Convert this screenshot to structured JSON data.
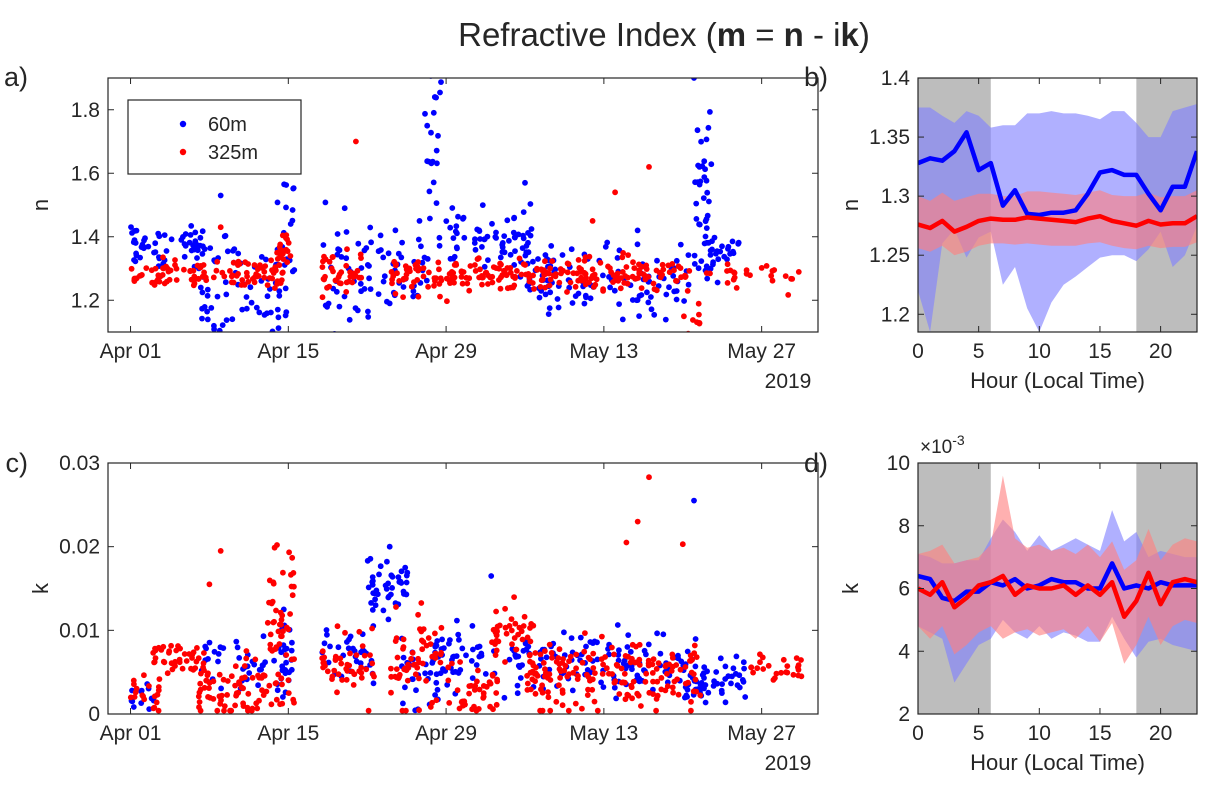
{
  "figure": {
    "title_parts": [
      {
        "text": "Refractive Index (",
        "bold": false
      },
      {
        "text": "m",
        "bold": true
      },
      {
        "text": " = ",
        "bold": false
      },
      {
        "text": "n",
        "bold": true
      },
      {
        "text": " - i",
        "bold": false
      },
      {
        "text": "k",
        "bold": true
      },
      {
        "text": ")",
        "bold": false
      }
    ],
    "year_label": "2019",
    "colors": {
      "blue": "#0000ff",
      "red": "#ff0000",
      "blue_band": "#7f7fff",
      "red_band": "#ff7f7f",
      "night_shade": "#bdbdbd",
      "axis": "#262626"
    }
  },
  "chart_data": [
    {
      "panel": "a)",
      "type": "scatter",
      "ylabel": "n",
      "xlim": [
        "2019-03-30",
        "2019-06-01"
      ],
      "ylim": [
        1.1,
        1.9
      ],
      "xticks": [
        "Apr 01",
        "Apr 15",
        "Apr 29",
        "May 13",
        "May 27"
      ],
      "yticks": [
        "1.2",
        "1.4",
        "1.6",
        "1.8"
      ],
      "legend": {
        "position": "top-left",
        "entries": [
          "60m",
          "325m"
        ]
      },
      "series": [
        {
          "name": "60m",
          "color": "#0000ff",
          "segments": [
            {
              "x0": "2019-04-01",
              "x1": "2019-04-07",
              "mean": 1.37,
              "spread": 0.03,
              "n": 60
            },
            {
              "x0": "2019-04-07",
              "x1": "2019-04-15",
              "mean": 1.22,
              "spread": 0.09,
              "n": 70
            },
            {
              "x0": "2019-04-14",
              "x1": "2019-04-15",
              "mean": 1.47,
              "spread": 0.1,
              "n": 15
            },
            {
              "x0": "2019-04-18",
              "x1": "2019-04-27",
              "mean": 1.28,
              "spread": 0.09,
              "n": 80
            },
            {
              "x0": "2019-04-27",
              "x1": "2019-04-28",
              "mean": 1.7,
              "spread": 0.12,
              "n": 20
            },
            {
              "x0": "2019-04-28",
              "x1": "2019-05-06",
              "mean": 1.39,
              "spread": 0.05,
              "n": 70
            },
            {
              "x0": "2019-05-06",
              "x1": "2019-05-20",
              "mean": 1.26,
              "spread": 0.06,
              "n": 110
            },
            {
              "x0": "2019-05-21",
              "x1": "2019-05-22",
              "mean": 1.55,
              "spread": 0.18,
              "n": 35
            },
            {
              "x0": "2019-05-22",
              "x1": "2019-05-25",
              "mean": 1.36,
              "spread": 0.04,
              "n": 30
            }
          ],
          "points": [
            {
              "x": "2019-05-21",
              "y": 1.9
            },
            {
              "x": "2019-04-28",
              "y": 1.84
            },
            {
              "x": "2019-04-09",
              "y": 1.53
            },
            {
              "x": "2019-05-06",
              "y": 1.57
            },
            {
              "x": "2019-04-20",
              "y": 1.49
            }
          ]
        },
        {
          "name": "325m",
          "color": "#ff0000",
          "segments": [
            {
              "x0": "2019-04-01",
              "x1": "2019-04-14",
              "mean": 1.28,
              "spread": 0.02,
              "n": 110
            },
            {
              "x0": "2019-04-14",
              "x1": "2019-04-15",
              "mean": 1.37,
              "spread": 0.03,
              "n": 20
            },
            {
              "x0": "2019-04-18",
              "x1": "2019-04-21",
              "mean": 1.29,
              "spread": 0.03,
              "n": 40
            },
            {
              "x0": "2019-04-24",
              "x1": "2019-04-28",
              "mean": 1.28,
              "spread": 0.03,
              "n": 45
            },
            {
              "x0": "2019-04-29",
              "x1": "2019-05-20",
              "mean": 1.28,
              "spread": 0.025,
              "n": 200
            },
            {
              "x0": "2019-05-20",
              "x1": "2019-05-21",
              "mean": 1.14,
              "spread": 0.03,
              "n": 10
            },
            {
              "x0": "2019-05-22",
              "x1": "2019-05-30",
              "mean": 1.28,
              "spread": 0.02,
              "n": 25
            }
          ],
          "points": [
            {
              "x": "2019-04-21",
              "y": 1.7
            },
            {
              "x": "2019-05-17",
              "y": 1.62
            },
            {
              "x": "2019-05-14",
              "y": 1.54
            },
            {
              "x": "2019-05-12",
              "y": 1.45
            },
            {
              "x": "2019-04-09",
              "y": 1.43
            }
          ]
        }
      ]
    },
    {
      "panel": "b)",
      "type": "line",
      "xlabel": "Hour (Local Time)",
      "ylabel": "n",
      "xlim": [
        0,
        23
      ],
      "ylim": [
        1.185,
        1.4
      ],
      "xticks": [
        "0",
        "5",
        "10",
        "15",
        "20"
      ],
      "yticks": [
        "1.2",
        "1.25",
        "1.3",
        "1.35",
        "1.4"
      ],
      "shaded_hours": [
        [
          0,
          6
        ],
        [
          18,
          23
        ]
      ],
      "x": [
        0,
        1,
        2,
        3,
        4,
        5,
        6,
        7,
        8,
        9,
        10,
        11,
        12,
        13,
        14,
        15,
        16,
        17,
        18,
        19,
        20,
        21,
        22,
        23
      ],
      "series": [
        {
          "color": "#0000ff",
          "values": [
            1.328,
            1.332,
            1.33,
            1.338,
            1.354,
            1.322,
            1.328,
            1.292,
            1.305,
            1.285,
            1.284,
            1.286,
            1.286,
            1.288,
            1.302,
            1.32,
            1.322,
            1.318,
            1.318,
            1.302,
            1.288,
            1.308,
            1.308,
            1.338
          ],
          "upper": [
            1.375,
            1.375,
            1.368,
            1.362,
            1.372,
            1.368,
            1.358,
            1.36,
            1.36,
            1.37,
            1.37,
            1.372,
            1.37,
            1.37,
            1.368,
            1.365,
            1.372,
            1.372,
            1.362,
            1.35,
            1.35,
            1.372,
            1.375,
            1.378
          ],
          "lower": [
            1.22,
            1.185,
            1.26,
            1.272,
            1.248,
            1.265,
            1.27,
            1.225,
            1.24,
            1.205,
            1.185,
            1.21,
            1.225,
            1.232,
            1.24,
            1.248,
            1.25,
            1.25,
            1.245,
            1.255,
            1.27,
            1.24,
            1.25,
            1.275
          ]
        },
        {
          "color": "#ff0000",
          "values": [
            1.276,
            1.273,
            1.279,
            1.27,
            1.274,
            1.279,
            1.281,
            1.28,
            1.28,
            1.282,
            1.281,
            1.28,
            1.279,
            1.278,
            1.281,
            1.283,
            1.279,
            1.277,
            1.275,
            1.279,
            1.276,
            1.277,
            1.277,
            1.283
          ],
          "upper": [
            1.3,
            1.296,
            1.303,
            1.296,
            1.299,
            1.302,
            1.302,
            1.3,
            1.3,
            1.304,
            1.304,
            1.303,
            1.302,
            1.301,
            1.303,
            1.305,
            1.301,
            1.3,
            1.3,
            1.303,
            1.299,
            1.3,
            1.3,
            1.305
          ],
          "lower": [
            1.256,
            1.253,
            1.258,
            1.25,
            1.253,
            1.258,
            1.26,
            1.26,
            1.259,
            1.26,
            1.259,
            1.258,
            1.258,
            1.258,
            1.26,
            1.261,
            1.258,
            1.256,
            1.255,
            1.258,
            1.256,
            1.257,
            1.257,
            1.261
          ]
        }
      ]
    },
    {
      "panel": "c)",
      "type": "scatter",
      "ylabel": "k",
      "xlim": [
        "2019-03-30",
        "2019-06-01"
      ],
      "ylim": [
        0,
        0.03
      ],
      "xticks": [
        "Apr 01",
        "Apr 15",
        "Apr 29",
        "May 13",
        "May 27"
      ],
      "yticks": [
        "0",
        "0.01",
        "0.02",
        "0.03"
      ],
      "series": [
        {
          "name": "60m",
          "color": "#0000ff",
          "segments": [
            {
              "x0": "2019-04-01",
              "x1": "2019-04-03",
              "mean": 0.002,
              "spread": 0.001,
              "n": 12
            },
            {
              "x0": "2019-04-07",
              "x1": "2019-04-14",
              "mean": 0.006,
              "spread": 0.002,
              "n": 40
            },
            {
              "x0": "2019-04-14",
              "x1": "2019-04-15",
              "mean": 0.007,
              "spread": 0.003,
              "n": 20
            },
            {
              "x0": "2019-04-18",
              "x1": "2019-04-22",
              "mean": 0.007,
              "spread": 0.002,
              "n": 30
            },
            {
              "x0": "2019-04-22",
              "x1": "2019-04-25",
              "mean": 0.015,
              "spread": 0.0015,
              "n": 45
            },
            {
              "x0": "2019-04-25",
              "x1": "2019-04-28",
              "mean": 0.005,
              "spread": 0.002,
              "n": 30
            },
            {
              "x0": "2019-04-28",
              "x1": "2019-05-02",
              "mean": 0.007,
              "spread": 0.0015,
              "n": 40
            },
            {
              "x0": "2019-05-03",
              "x1": "2019-05-20",
              "mean": 0.006,
              "spread": 0.002,
              "n": 120
            },
            {
              "x0": "2019-05-20",
              "x1": "2019-05-25",
              "mean": 0.004,
              "spread": 0.0015,
              "n": 55
            }
          ],
          "points": [
            {
              "x": "2019-05-21",
              "y": 0.0255
            },
            {
              "x": "2019-04-24",
              "y": 0.02
            },
            {
              "x": "2019-05-03",
              "y": 0.0165
            }
          ]
        },
        {
          "name": "325m",
          "color": "#ff0000",
          "segments": [
            {
              "x0": "2019-04-01",
              "x1": "2019-04-03",
              "mean": 0.002,
              "spread": 0.0012,
              "n": 20
            },
            {
              "x0": "2019-04-03",
              "x1": "2019-04-07",
              "mean": 0.0065,
              "spread": 0.001,
              "n": 40
            },
            {
              "x0": "2019-04-07",
              "x1": "2019-04-14",
              "mean": 0.003,
              "spread": 0.002,
              "n": 80
            },
            {
              "x0": "2019-04-13",
              "x1": "2019-04-15",
              "mean": 0.011,
              "spread": 0.004,
              "n": 45
            },
            {
              "x0": "2019-04-18",
              "x1": "2019-04-22",
              "mean": 0.006,
              "spread": 0.002,
              "n": 45
            },
            {
              "x0": "2019-04-24",
              "x1": "2019-04-28",
              "mean": 0.006,
              "spread": 0.003,
              "n": 60
            },
            {
              "x0": "2019-04-29",
              "x1": "2019-05-03",
              "mean": 0.003,
              "spread": 0.002,
              "n": 40
            },
            {
              "x0": "2019-05-03",
              "x1": "2019-05-06",
              "mean": 0.0095,
              "spread": 0.0015,
              "n": 40
            },
            {
              "x0": "2019-05-06",
              "x1": "2019-05-21",
              "mean": 0.005,
              "spread": 0.002,
              "n": 180
            },
            {
              "x0": "2019-05-26",
              "x1": "2019-05-30",
              "mean": 0.0055,
              "spread": 0.0012,
              "n": 25
            }
          ],
          "points": [
            {
              "x": "2019-05-17",
              "y": 0.0283
            },
            {
              "x": "2019-05-16",
              "y": 0.023
            },
            {
              "x": "2019-05-15",
              "y": 0.0205
            },
            {
              "x": "2019-05-20",
              "y": 0.0203
            },
            {
              "x": "2019-04-14",
              "y": 0.0202
            },
            {
              "x": "2019-04-09",
              "y": 0.0195
            },
            {
              "x": "2019-04-08",
              "y": 0.0155
            }
          ]
        }
      ]
    },
    {
      "panel": "d)",
      "type": "line",
      "xlabel": "Hour (Local Time)",
      "ylabel": "k",
      "exponent_label": "×10",
      "exponent_power": "-3",
      "xlim": [
        0,
        23
      ],
      "ylim": [
        2,
        10
      ],
      "xticks": [
        "0",
        "5",
        "10",
        "15",
        "20"
      ],
      "yticks": [
        "2",
        "4",
        "6",
        "8",
        "10"
      ],
      "shaded_hours": [
        [
          0,
          6
        ],
        [
          18,
          23
        ]
      ],
      "x": [
        0,
        1,
        2,
        3,
        4,
        5,
        6,
        7,
        8,
        9,
        10,
        11,
        12,
        13,
        14,
        15,
        16,
        17,
        18,
        19,
        20,
        21,
        22,
        23
      ],
      "series": [
        {
          "color": "#0000ff",
          "values": [
            6.4,
            6.3,
            5.7,
            5.6,
            5.9,
            5.9,
            6.2,
            6.1,
            6.3,
            6.0,
            6.1,
            6.3,
            6.2,
            6.2,
            6.0,
            6.0,
            6.8,
            6.0,
            6.1,
            6.0,
            6.2,
            6.1,
            6.1,
            6.1
          ],
          "upper": [
            7.1,
            7.0,
            6.8,
            6.8,
            6.9,
            6.9,
            7.6,
            8.2,
            7.8,
            7.2,
            7.7,
            7.2,
            7.4,
            7.6,
            7.4,
            7.2,
            8.5,
            7.5,
            7.8,
            7.0,
            7.2,
            7.1,
            7.0,
            7.0
          ],
          "lower": [
            4.8,
            4.6,
            4.4,
            3.0,
            3.6,
            4.2,
            4.4,
            5.0,
            4.6,
            4.4,
            4.8,
            4.4,
            4.6,
            4.5,
            4.3,
            4.3,
            5.1,
            4.4,
            3.8,
            4.3,
            4.4,
            4.2,
            4.1,
            4.0
          ]
        },
        {
          "color": "#ff0000",
          "values": [
            6.0,
            5.8,
            6.2,
            5.4,
            5.7,
            6.1,
            6.2,
            6.4,
            5.8,
            6.1,
            6.0,
            6.0,
            6.1,
            5.8,
            6.1,
            5.8,
            6.2,
            5.1,
            5.6,
            6.5,
            5.5,
            6.2,
            6.3,
            6.2
          ],
          "upper": [
            7.1,
            7.2,
            7.4,
            6.8,
            6.9,
            7.0,
            7.4,
            9.6,
            7.6,
            7.3,
            7.4,
            7.2,
            7.3,
            7.1,
            7.4,
            7.0,
            7.5,
            6.6,
            6.9,
            7.9,
            6.9,
            7.4,
            7.6,
            7.5
          ],
          "lower": [
            4.8,
            4.4,
            4.8,
            3.9,
            4.2,
            4.6,
            4.8,
            4.4,
            4.6,
            4.7,
            4.5,
            4.6,
            4.7,
            4.4,
            4.8,
            4.3,
            4.9,
            3.6,
            4.2,
            5.1,
            4.2,
            4.8,
            5.0,
            4.9
          ]
        }
      ]
    }
  ]
}
